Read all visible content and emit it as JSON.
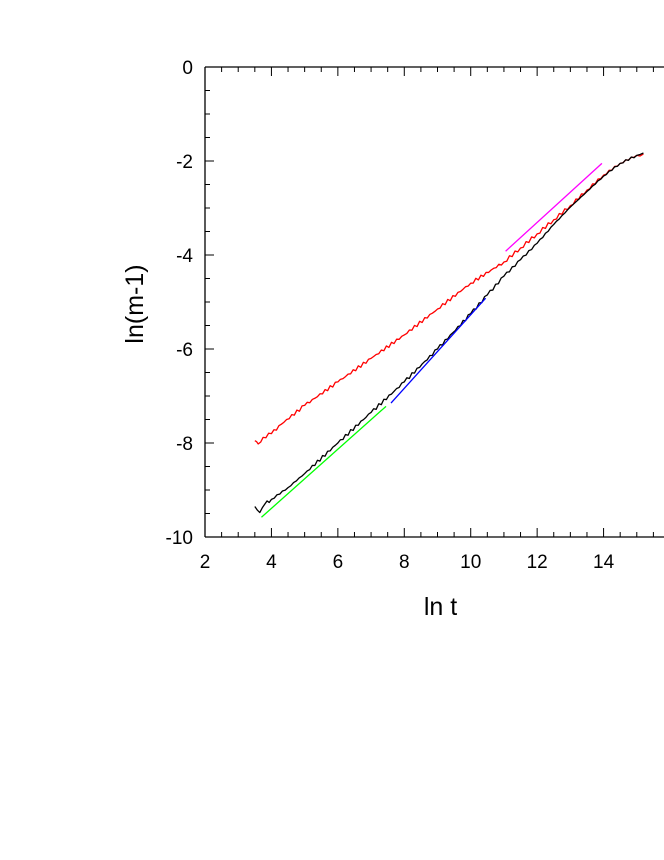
{
  "chart_data": {
    "type": "line",
    "xlabel": "ln t",
    "ylabel": "ln(m-1)",
    "xlim": [
      2,
      16
    ],
    "ylim": [
      -10,
      0
    ],
    "x_ticks": [
      2,
      4,
      6,
      8,
      10,
      12,
      14
    ],
    "x_tick_labels": [
      "2",
      "4",
      "6",
      "8",
      "10",
      "12",
      "14"
    ],
    "y_ticks": [
      0,
      -2,
      -4,
      -6,
      -8,
      -10
    ],
    "y_tick_labels": [
      "0",
      "-2",
      "-4",
      "-6",
      "-8",
      "-10"
    ],
    "grid": false,
    "series": [
      {
        "color": "#ff0000",
        "style": "noisy",
        "x": [
          3.5,
          3.6,
          3.75,
          4.0,
          4.3,
          5.0,
          6.0,
          7.0,
          8.0,
          9.0,
          10.0,
          11.0,
          11.5,
          12.0,
          12.5,
          13.0,
          13.5,
          14.0,
          14.5,
          15.0,
          15.2
        ],
        "y": [
          -7.95,
          -8.02,
          -7.88,
          -7.8,
          -7.6,
          -7.2,
          -6.7,
          -6.2,
          -5.7,
          -5.15,
          -4.6,
          -4.15,
          -3.85,
          -3.55,
          -3.25,
          -2.95,
          -2.62,
          -2.3,
          -2.05,
          -1.88,
          -1.85
        ]
      },
      {
        "color": "#000000",
        "style": "noisy",
        "x": [
          3.5,
          3.65,
          3.8,
          4.0,
          4.5,
          5.0,
          6.0,
          7.0,
          8.0,
          9.0,
          10.0,
          10.5,
          11.0,
          11.5,
          12.0,
          12.5,
          13.0,
          13.5,
          14.0,
          14.5,
          15.0,
          15.2
        ],
        "y": [
          -9.35,
          -9.48,
          -9.3,
          -9.2,
          -8.95,
          -8.65,
          -8.0,
          -7.35,
          -6.7,
          -6.0,
          -5.25,
          -4.85,
          -4.45,
          -4.1,
          -3.75,
          -3.35,
          -2.98,
          -2.65,
          -2.32,
          -2.05,
          -1.88,
          -1.83
        ]
      },
      {
        "color": "#00ff00",
        "style": "fit",
        "x": [
          3.7,
          7.45
        ],
        "y": [
          -9.58,
          -7.22
        ]
      },
      {
        "color": "#0000ff",
        "style": "fit",
        "x": [
          7.6,
          10.45
        ],
        "y": [
          -7.15,
          -4.92
        ]
      },
      {
        "color": "#ff00ff",
        "style": "fit",
        "x": [
          11.05,
          13.95
        ],
        "y": [
          -3.92,
          -2.05
        ]
      }
    ]
  }
}
